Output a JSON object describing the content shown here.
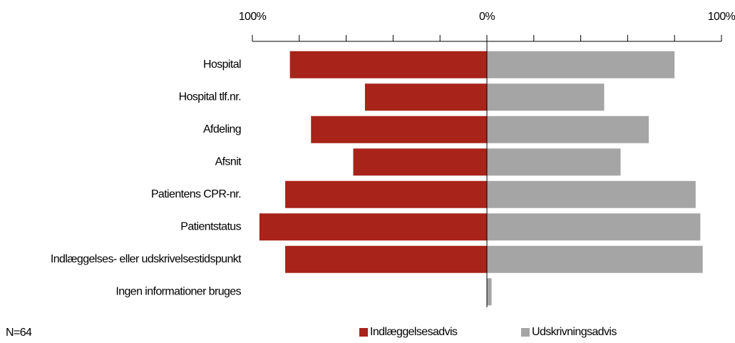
{
  "chart_data": {
    "type": "butterfly-bar",
    "categories": [
      "Hospital",
      "Hospital tlf.nr.",
      "Afdeling",
      "Afsnit",
      "Patientens CPR-nr.",
      "Patientstatus",
      "Indlæggelses- eller udskrivelsestidspunkt",
      "Ingen informationer bruges"
    ],
    "series": [
      {
        "name": "Indlæggelsesadvis",
        "color": "#a8231a",
        "values": [
          -84,
          -52,
          -75,
          -57,
          -86,
          -97,
          -86,
          0
        ]
      },
      {
        "name": "Udskrivningsadvis",
        "color": "#a5a5a5",
        "values": [
          80,
          50,
          69,
          57,
          89,
          91,
          92,
          2
        ]
      }
    ],
    "xlim": [
      -100,
      100
    ],
    "xticks": [
      {
        "value": -100,
        "label": "100%"
      },
      {
        "value": -80,
        "label": null
      },
      {
        "value": -60,
        "label": null
      },
      {
        "value": -40,
        "label": null
      },
      {
        "value": -20,
        "label": null
      },
      {
        "value": 0,
        "label": "0%"
      },
      {
        "value": 20,
        "label": null
      },
      {
        "value": 40,
        "label": null
      },
      {
        "value": 60,
        "label": null
      },
      {
        "value": 80,
        "label": null
      },
      {
        "value": 100,
        "label": "100%"
      }
    ],
    "annotation": "N=64",
    "legend": "bottom"
  }
}
